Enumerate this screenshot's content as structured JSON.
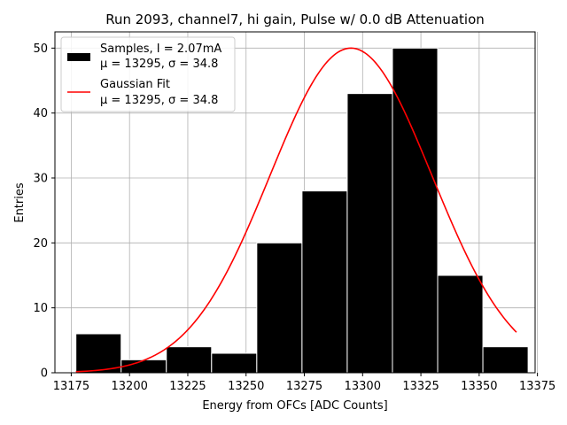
{
  "chart_data": {
    "type": "histogram",
    "title": "Run 2093, channel7, hi gain, Pulse w/ 0.0 dB Attenuation",
    "xlabel": "Energy from OFCs [ADC Counts]",
    "ylabel": "Entries",
    "xlim": [
      13168,
      13374
    ],
    "ylim": [
      0,
      52.5
    ],
    "xticks": [
      13175,
      13200,
      13225,
      13250,
      13275,
      13300,
      13325,
      13350,
      13375
    ],
    "yticks": [
      0,
      10,
      20,
      30,
      40,
      50
    ],
    "grid": true,
    "legend_position": "top-left",
    "bins": [
      {
        "x0": 13177,
        "x1": 13196.4,
        "count": 6
      },
      {
        "x0": 13196.4,
        "x1": 13215.8,
        "count": 2
      },
      {
        "x0": 13215.8,
        "x1": 13235.2,
        "count": 4
      },
      {
        "x0": 13235.2,
        "x1": 13254.6,
        "count": 3
      },
      {
        "x0": 13254.6,
        "x1": 13274.0,
        "count": 20
      },
      {
        "x0": 13274.0,
        "x1": 13293.4,
        "count": 28
      },
      {
        "x0": 13293.4,
        "x1": 13312.8,
        "count": 43
      },
      {
        "x0": 13312.8,
        "x1": 13332.2,
        "count": 50
      },
      {
        "x0": 13332.2,
        "x1": 13351.6,
        "count": 15
      },
      {
        "x0": 13351.6,
        "x1": 13371.0,
        "count": 4
      }
    ],
    "series": [
      {
        "name": "Samples, I = 2.07mA",
        "stats": "μ = 13295, σ = 34.8",
        "color": "#000000",
        "kind": "bars"
      },
      {
        "name": "Gaussian Fit",
        "stats": "μ = 13295, σ = 34.8",
        "color": "#ff0000",
        "kind": "line",
        "mu": 13295,
        "sigma": 34.8,
        "amplitude": 50,
        "x_range": [
          13177,
          13366
        ]
      }
    ]
  }
}
